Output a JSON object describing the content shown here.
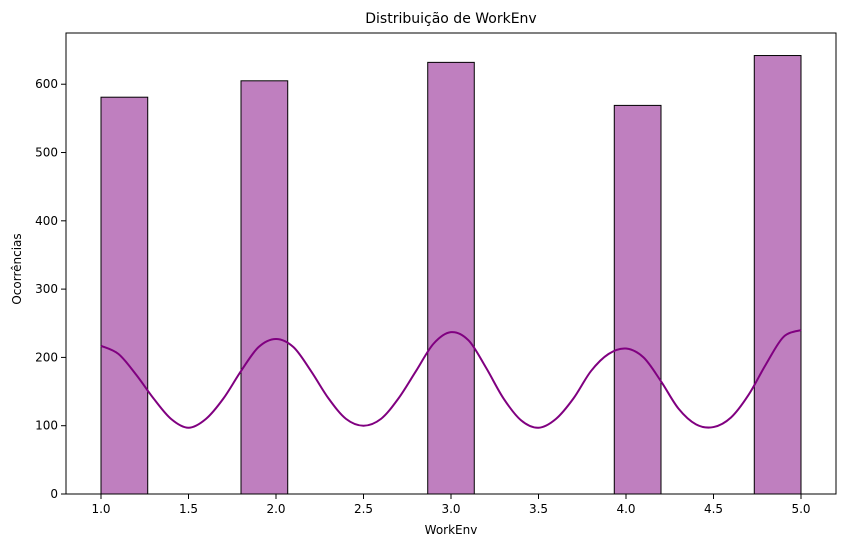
{
  "chart_data": {
    "type": "bar",
    "title": "Distribuição de WorkEnv",
    "xlabel": "WorkEnv",
    "ylabel": "Ocorrências",
    "xlim": [
      0.8,
      5.2
    ],
    "ylim": [
      0,
      675
    ],
    "x_ticks": [
      "1.0",
      "1.5",
      "2.0",
      "2.5",
      "3.0",
      "3.5",
      "4.0",
      "4.5",
      "5.0"
    ],
    "y_ticks": [
      "0",
      "100",
      "200",
      "300",
      "400",
      "500",
      "600"
    ],
    "bins": [
      {
        "x0": 1.0,
        "x1": 1.267,
        "value": 581
      },
      {
        "x0": 1.8,
        "x1": 2.067,
        "value": 605
      },
      {
        "x0": 2.867,
        "x1": 3.133,
        "value": 632
      },
      {
        "x0": 3.933,
        "x1": 4.2,
        "value": 569
      },
      {
        "x0": 4.733,
        "x1": 5.0,
        "value": 642
      }
    ],
    "kde": {
      "name": "kde",
      "x": [
        1.0,
        1.1,
        1.2,
        1.3,
        1.4,
        1.5,
        1.6,
        1.7,
        1.8,
        1.9,
        2.0,
        2.1,
        2.2,
        2.3,
        2.4,
        2.5,
        2.6,
        2.7,
        2.8,
        2.9,
        3.0,
        3.1,
        3.2,
        3.3,
        3.4,
        3.5,
        3.6,
        3.7,
        3.8,
        3.9,
        4.0,
        4.1,
        4.2,
        4.3,
        4.4,
        4.5,
        4.6,
        4.7,
        4.8,
        4.9,
        5.0
      ],
      "y": [
        217,
        205,
        175,
        140,
        110,
        97,
        110,
        140,
        180,
        215,
        227,
        215,
        180,
        140,
        110,
        100,
        110,
        140,
        180,
        220,
        237,
        225,
        185,
        140,
        108,
        97,
        110,
        140,
        180,
        205,
        213,
        200,
        165,
        125,
        102,
        98,
        112,
        145,
        190,
        230,
        240
      ]
    },
    "colors": {
      "bar_fill": "#bf7fbf",
      "bar_edge": "#000000",
      "kde_line": "#800080"
    },
    "grid": false,
    "legend": "none"
  }
}
